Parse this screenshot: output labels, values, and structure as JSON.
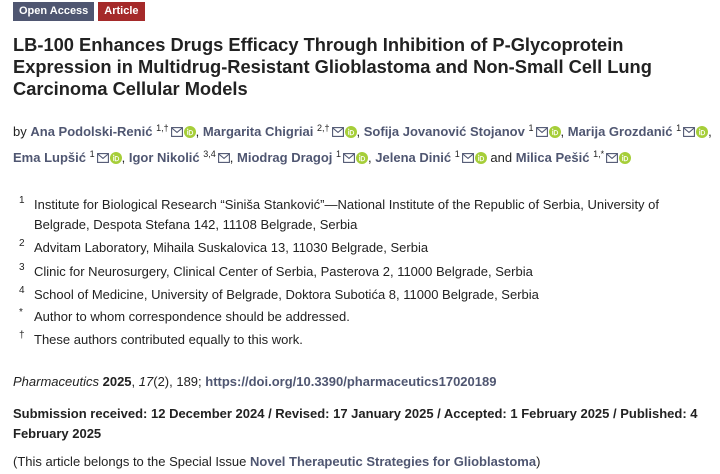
{
  "badges": {
    "open_access": "Open Access",
    "article": "Article"
  },
  "title": "LB-100 Enhances Drugs Efficacy Through Inhibition of P-Glycoprotein Expression in Multidrug-Resistant Glioblastoma and Non-Small Cell Lung Carcinoma Cellular Models",
  "authors_prefix": "by",
  "authors": [
    {
      "name": "Ana Podolski-Renić",
      "sup": "1,†",
      "mail": true,
      "orcid": true,
      "sep": ","
    },
    {
      "name": "Margarita Chigriai",
      "sup": "2,†",
      "mail": true,
      "orcid": true,
      "sep": ","
    },
    {
      "name": "Sofija Jovanović Stojanov",
      "sup": "1",
      "mail": true,
      "orcid": true,
      "sep": ","
    },
    {
      "name": "Marija Grozdanić",
      "sup": "1",
      "mail": true,
      "orcid": true,
      "sep": ","
    },
    {
      "name": "Ema Lupšić",
      "sup": "1",
      "mail": true,
      "orcid": true,
      "sep": ","
    },
    {
      "name": "Igor Nikolić",
      "sup": "3,4",
      "mail": true,
      "orcid": false,
      "sep": ","
    },
    {
      "name": "Miodrag Dragoj",
      "sup": "1",
      "mail": true,
      "orcid": true,
      "sep": ","
    },
    {
      "name": "Jelena Dinić",
      "sup": "1",
      "mail": true,
      "orcid": true,
      "sep": " and"
    },
    {
      "name": "Milica Pešić",
      "sup": "1,*",
      "mail": true,
      "orcid": true,
      "sep": ""
    }
  ],
  "affiliations": [
    {
      "marker": "1",
      "text": "Institute for Biological Research “Siniša Stanković”—National Institute of the Republic of Serbia, University of Belgrade, Despota Stefana 142, 11108 Belgrade, Serbia"
    },
    {
      "marker": "2",
      "text": "Advitam Laboratory, Mihaila Suskalovica 13, 11030 Belgrade, Serbia"
    },
    {
      "marker": "3",
      "text": "Clinic for Neurosurgery, Clinical Center of Serbia, Pasterova 2, 11000 Belgrade, Serbia"
    },
    {
      "marker": "4",
      "text": "School of Medicine, University of Belgrade, Doktora Subotića 8, 11000 Belgrade, Serbia"
    },
    {
      "marker": "*",
      "text": "Author to whom correspondence should be addressed."
    },
    {
      "marker": "†",
      "text": "These authors contributed equally to this work."
    }
  ],
  "citation": {
    "journal": "Pharmaceutics",
    "year": "2025",
    "volume": "17",
    "issue": "(2)",
    "pages": ", 189; ",
    "doi": "https://doi.org/10.3390/pharmaceutics17020189"
  },
  "dates": "Submission received: 12 December 2024 / Revised: 17 January 2025 / Accepted: 1 February 2025 / Published: 4 February 2025",
  "special_issue": {
    "prefix": "(This article belongs to the Special Issue ",
    "link": "Novel Therapeutic Strategies for Glioblastoma",
    "suffix": ")"
  },
  "colors": {
    "link": "#4f5671",
    "open_access_badge": "#4f5671",
    "article_badge": "#a52a2a",
    "orcid": "#a6ce39"
  },
  "icons": {
    "mail": "envelope-icon",
    "orcid": "orcid-icon"
  }
}
